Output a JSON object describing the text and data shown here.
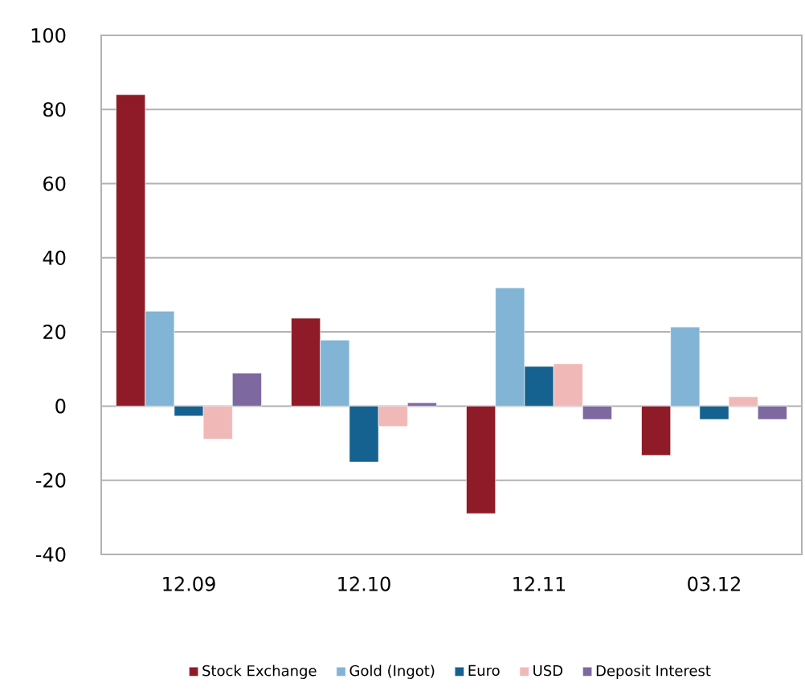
{
  "chart_data": {
    "type": "bar",
    "categories": [
      "12.09",
      "12.10",
      "12.11",
      "03.12"
    ],
    "series": [
      {
        "name": "Stock Exchange",
        "color": "#8e1b27",
        "values": [
          84,
          23.7,
          -29,
          -13.3
        ]
      },
      {
        "name": "Gold (Ingot)",
        "color": "#82b4d6",
        "values": [
          25.6,
          17.8,
          31.9,
          21.3
        ]
      },
      {
        "name": "Euro",
        "color": "#15618f",
        "values": [
          -2.7,
          -15.1,
          10.7,
          -3.6
        ]
      },
      {
        "name": "USD",
        "color": "#f0b8b6",
        "values": [
          -8.9,
          -5.5,
          11.4,
          2.5
        ]
      },
      {
        "name": "Deposit Interest",
        "color": "#7d68a0",
        "values": [
          8.9,
          0.9,
          -3.6,
          -3.6
        ]
      }
    ],
    "ylim": [
      -40,
      100
    ],
    "yticks": [
      -40,
      -20,
      0,
      20,
      40,
      60,
      80,
      100
    ],
    "grid": "y",
    "legend": "bottom"
  }
}
